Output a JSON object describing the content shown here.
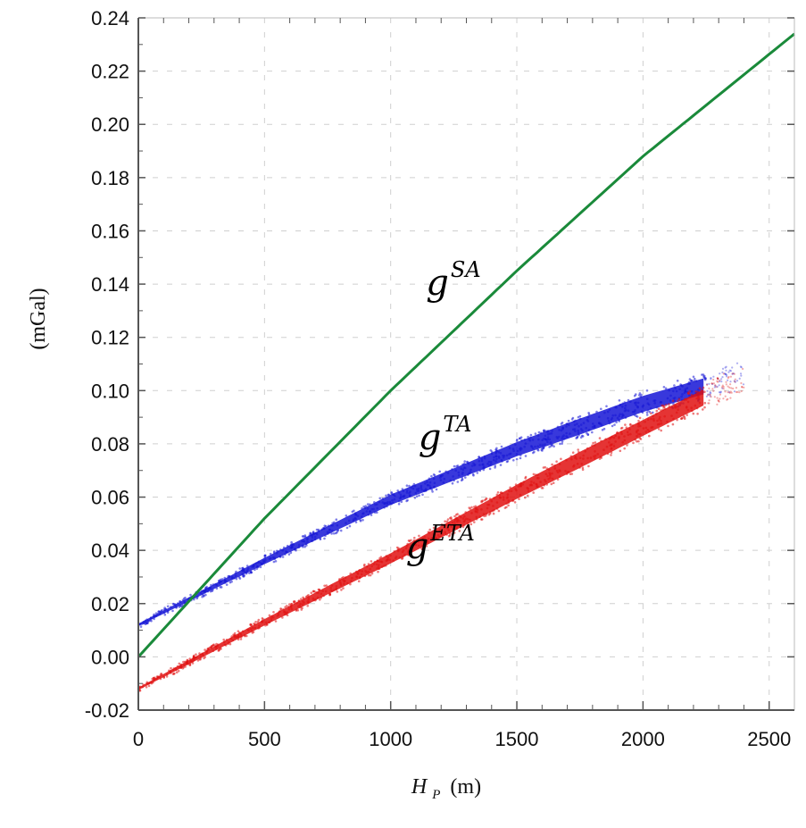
{
  "chart_data": {
    "type": "scatter",
    "title": "",
    "xlabel": {
      "var": "H",
      "sub": "P",
      "unit": "(m)"
    },
    "ylabel": "(mGal)",
    "xlim": [
      0,
      2600
    ],
    "ylim": [
      -0.02,
      0.24
    ],
    "xticks": [
      "0",
      "500",
      "1000",
      "1500",
      "2000",
      "2500"
    ],
    "xtick_values": [
      0,
      500,
      1000,
      1500,
      2000,
      2500
    ],
    "yticks": [
      "-0.02",
      "0.00",
      "0.02",
      "0.04",
      "0.06",
      "0.08",
      "0.10",
      "0.12",
      "0.14",
      "0.16",
      "0.18",
      "0.20",
      "0.22",
      "0.24"
    ],
    "ytick_values": [
      -0.02,
      0.0,
      0.02,
      0.04,
      0.06,
      0.08,
      0.1,
      0.12,
      0.14,
      0.16,
      0.18,
      0.2,
      0.22,
      0.24
    ],
    "grid": true,
    "series": [
      {
        "name": "g^SA",
        "label_base": "g",
        "label_sup": "SA",
        "color": "#1a8a3a",
        "style": "line",
        "x": [
          0,
          500,
          1000,
          1500,
          2000,
          2600
        ],
        "y": [
          0.0,
          0.052,
          0.1,
          0.145,
          0.188,
          0.234
        ]
      },
      {
        "name": "g^TA",
        "label_base": "g",
        "label_sup": "TA",
        "color": "#1515d6",
        "style": "band",
        "x": [
          0,
          500,
          1000,
          1500,
          2000,
          2400
        ],
        "y": [
          0.012,
          0.036,
          0.059,
          0.078,
          0.095,
          0.106
        ],
        "spread": 0.003,
        "x_max_dense": 2250
      },
      {
        "name": "g^ETA",
        "label_base": "g",
        "label_sup": "ETA",
        "color": "#e01010",
        "style": "band",
        "x": [
          0,
          500,
          1000,
          1500,
          2000,
          2400
        ],
        "y": [
          -0.012,
          0.013,
          0.037,
          0.062,
          0.086,
          0.105
        ],
        "spread": 0.003,
        "x_max_dense": 2250
      }
    ],
    "annotations": [
      {
        "series": "g^SA",
        "base": "g",
        "sup": "SA",
        "x": 1140,
        "y": 0.136
      },
      {
        "series": "g^TA",
        "base": "g",
        "sup": "TA",
        "x": 1110,
        "y": 0.078
      },
      {
        "series": "g^ETA",
        "base": "g",
        "sup": "ETA",
        "x": 1060,
        "y": 0.037
      }
    ]
  },
  "colors": {
    "axis": "#555555",
    "grid": "#cfcfcf"
  }
}
